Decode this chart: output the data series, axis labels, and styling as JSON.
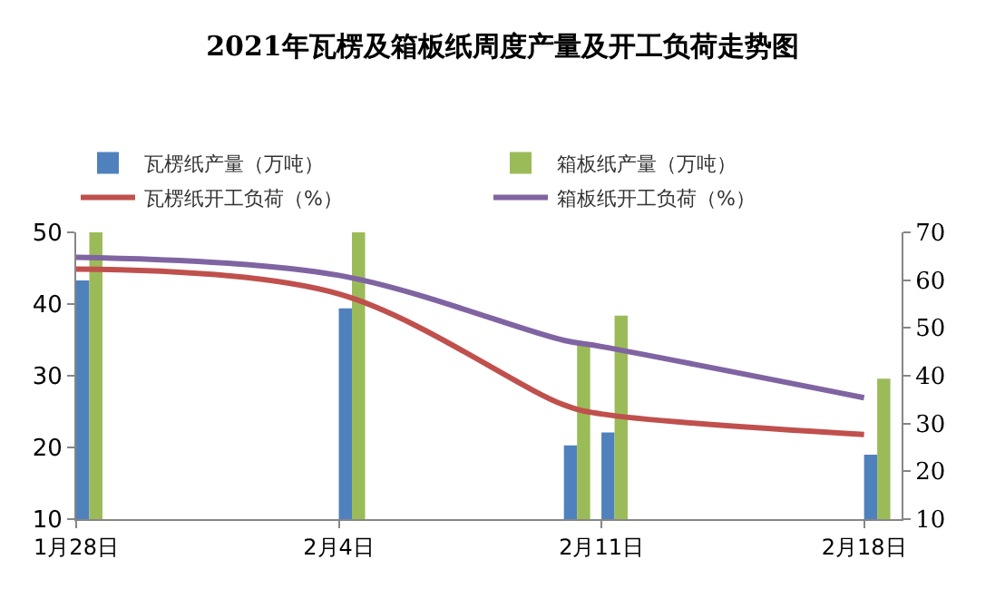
{
  "chart_data": {
    "type": "bar",
    "title": "2021年瓦楞及箱板纸周度产量及开工负荷走势图",
    "x": [
      "2021-01-28",
      "2021-02-04",
      "2021-02-10",
      "2021-02-11",
      "2021-02-18"
    ],
    "series": [
      {
        "name": "瓦楞纸产量（万吨）",
        "color": "#4f81bd",
        "values": [
          43.3,
          39.4,
          20.3,
          22.1,
          19.0
        ]
      },
      {
        "name": "箱板纸产量（万吨）",
        "color": "#9bbb59",
        "values": [
          50,
          50,
          34.3,
          38.4,
          29.6
        ]
      },
      {
        "name": "瓦楞纸开工负荷（%）",
        "type": "line",
        "axis": "y2",
        "color": "#c0504d",
        "values": [
          62.3,
          57.1,
          33.9,
          32.0,
          27.7
        ]
      },
      {
        "name": "箱板纸开工负荷（%）",
        "type": "line",
        "axis": "y2",
        "color": "#8064a2",
        "values": [
          64.8,
          61.0,
          47.4,
          46.1,
          35.4
        ]
      }
    ],
    "xlim": [
      "2021-01-28",
      "2021-02-19"
    ],
    "xticks": [
      {
        "value": "2021-01-28",
        "label": "1月28日"
      },
      {
        "value": "2021-02-04",
        "label": "2月4日"
      },
      {
        "value": "2021-02-11",
        "label": "2月11日"
      },
      {
        "value": "2021-02-18",
        "label": "2月18日"
      }
    ],
    "ylim": [
      10,
      50
    ],
    "yticks": [
      10,
      20,
      30,
      40,
      50
    ],
    "y2lim": [
      10,
      70
    ],
    "y2ticks": [
      10,
      20,
      30,
      40,
      50,
      60,
      70
    ],
    "legend": "top",
    "marker": "none",
    "line_style": "solid"
  }
}
